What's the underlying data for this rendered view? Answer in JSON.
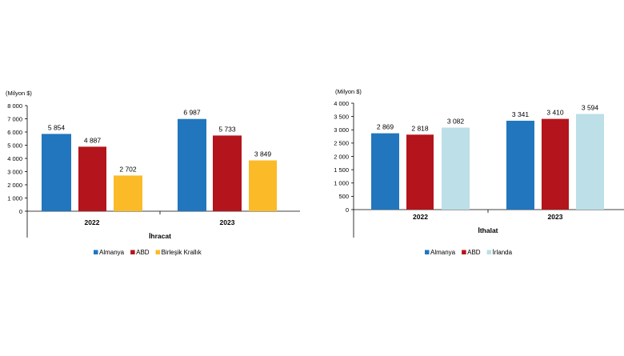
{
  "chart_data": [
    {
      "type": "bar",
      "unit_label": "(Milyon $)",
      "xlabel": "İhracat",
      "categories": [
        "2022",
        "2023"
      ],
      "ylim": [
        0,
        8000
      ],
      "yticks": [
        0,
        1000,
        2000,
        3000,
        4000,
        5000,
        6000,
        7000,
        8000
      ],
      "ytick_labels": [
        "0",
        "1 000",
        "2 000",
        "3 000",
        "4 000",
        "5 000",
        "6 000",
        "7 000",
        "8 000"
      ],
      "series": [
        {
          "name": "Almanya",
          "color": "#2176BD",
          "values": [
            5854,
            6987
          ],
          "labels": [
            "5 854",
            "6 987"
          ]
        },
        {
          "name": "ABD",
          "color": "#B4141B",
          "values": [
            4887,
            5733
          ],
          "labels": [
            "4 887",
            "5 733"
          ]
        },
        {
          "name": "Birleşik Krallık",
          "color": "#FBBA28",
          "values": [
            2702,
            3849
          ],
          "labels": [
            "2 702",
            "3 849"
          ]
        }
      ],
      "grid": false,
      "legend_position": "bottom"
    },
    {
      "type": "bar",
      "unit_label": "(Milyon $)",
      "xlabel": "İthalat",
      "categories": [
        "2022",
        "2023"
      ],
      "ylim": [
        0,
        4000
      ],
      "yticks": [
        0,
        500,
        1000,
        1500,
        2000,
        2500,
        3000,
        3500,
        4000
      ],
      "ytick_labels": [
        "0",
        "500",
        "1 000",
        "1 500",
        "2 000",
        "2 500",
        "3 000",
        "3 500",
        "4 000"
      ],
      "series": [
        {
          "name": "Almanya",
          "color": "#2176BD",
          "values": [
            2869,
            3341
          ],
          "labels": [
            "2 869",
            "3 341"
          ]
        },
        {
          "name": "ABD",
          "color": "#B4141B",
          "values": [
            2818,
            3410
          ],
          "labels": [
            "2 818",
            "3 410"
          ]
        },
        {
          "name": "İrlanda",
          "color": "#BCDFE8",
          "values": [
            3082,
            3594
          ],
          "labels": [
            "3 082",
            "3 594"
          ]
        }
      ],
      "grid": false,
      "legend_position": "bottom"
    }
  ]
}
